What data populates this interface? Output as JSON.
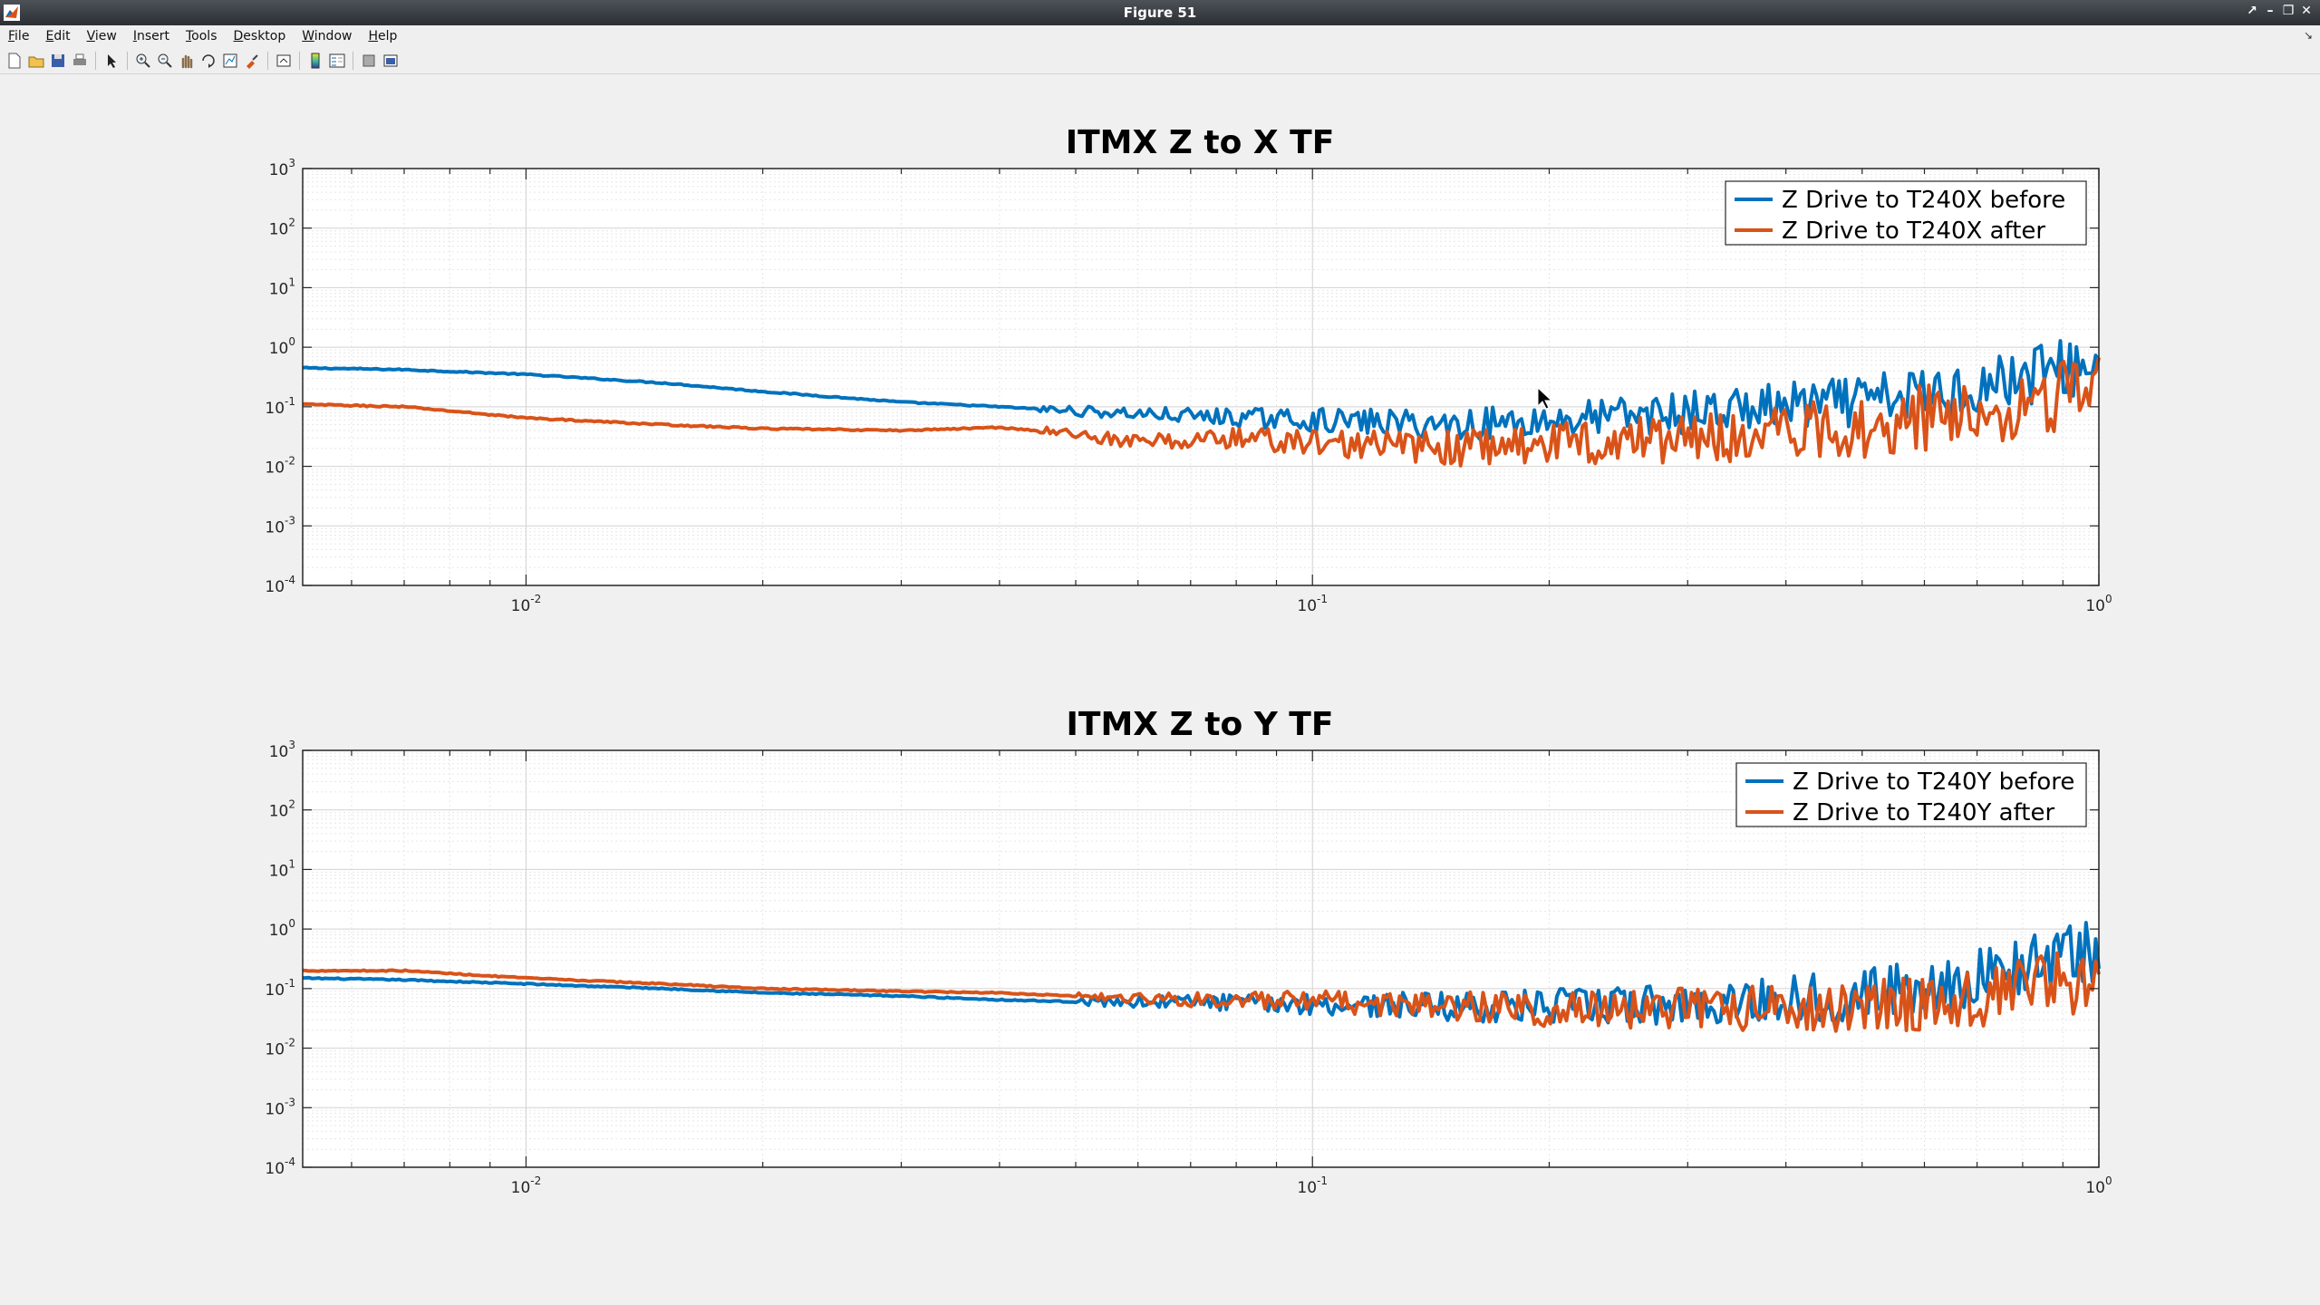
{
  "window": {
    "title": "Figure 51"
  },
  "menu": [
    "File",
    "Edit",
    "View",
    "Insert",
    "Tools",
    "Desktop",
    "Window",
    "Help"
  ],
  "toolbar": [
    "new-file-icon",
    "open-file-icon",
    "save-icon",
    "print-icon",
    "sep",
    "pointer-icon",
    "sep",
    "zoom-in-icon",
    "zoom-out-icon",
    "pan-icon",
    "rotate-icon",
    "data-cursor-icon",
    "brush-icon",
    "sep",
    "link-icon",
    "sep",
    "colorbar-icon",
    "legend-icon",
    "sep",
    "hide-tools-icon",
    "dock-icon"
  ],
  "colors": {
    "series1": "#0072bd",
    "series2": "#d95319"
  },
  "chart_data": [
    {
      "type": "line",
      "title": "ITMX Z to X TF",
      "xscale": "log",
      "yscale": "log",
      "xlim": [
        0.0052,
        1
      ],
      "ylim": [
        0.0001,
        1000
      ],
      "xticks": [
        {
          "v": 0.01,
          "e": "-2"
        },
        {
          "v": 0.1,
          "e": "-1"
        },
        {
          "v": 1,
          "e": "0"
        }
      ],
      "yticks": [
        {
          "v": 0.0001,
          "e": "-4"
        },
        {
          "v": 0.001,
          "e": "-3"
        },
        {
          "v": 0.01,
          "e": "-2"
        },
        {
          "v": 0.1,
          "e": "-1"
        },
        {
          "v": 1,
          "e": "0"
        },
        {
          "v": 10,
          "e": "1"
        },
        {
          "v": 100,
          "e": "2"
        },
        {
          "v": 1000,
          "e": "3"
        }
      ],
      "tick_base": "10",
      "grid": true,
      "legend_position": "top-right",
      "series": [
        {
          "name": "Z Drive to T240X before",
          "anchors": [
            [
              0.0052,
              0.45
            ],
            [
              0.007,
              0.42
            ],
            [
              0.01,
              0.35
            ],
            [
              0.015,
              0.25
            ],
            [
              0.02,
              0.18
            ],
            [
              0.03,
              0.12
            ],
            [
              0.04,
              0.1
            ],
            [
              0.05,
              0.085
            ],
            [
              0.07,
              0.07
            ],
            [
              0.1,
              0.06
            ],
            [
              0.15,
              0.05
            ],
            [
              0.2,
              0.06
            ],
            [
              0.3,
              0.08
            ],
            [
              0.5,
              0.12
            ],
            [
              0.7,
              0.22
            ],
            [
              0.85,
              0.4
            ],
            [
              1,
              0.5
            ]
          ],
          "noise": 0.55,
          "noise_start": 0.045
        },
        {
          "name": "Z Drive to T240X after",
          "anchors": [
            [
              0.0052,
              0.11
            ],
            [
              0.007,
              0.1
            ],
            [
              0.01,
              0.065
            ],
            [
              0.015,
              0.05
            ],
            [
              0.02,
              0.043
            ],
            [
              0.03,
              0.04
            ],
            [
              0.04,
              0.045
            ],
            [
              0.05,
              0.035
            ],
            [
              0.06,
              0.025
            ],
            [
              0.08,
              0.03
            ],
            [
              0.1,
              0.025
            ],
            [
              0.15,
              0.02
            ],
            [
              0.2,
              0.025
            ],
            [
              0.3,
              0.03
            ],
            [
              0.5,
              0.045
            ],
            [
              0.7,
              0.09
            ],
            [
              0.85,
              0.14
            ],
            [
              1,
              0.22
            ]
          ],
          "noise": 0.65,
          "noise_start": 0.045
        }
      ]
    },
    {
      "type": "line",
      "title": "ITMX Z to Y TF",
      "xscale": "log",
      "yscale": "log",
      "xlim": [
        0.0052,
        1
      ],
      "ylim": [
        0.0001,
        1000
      ],
      "xticks": [
        {
          "v": 0.01,
          "e": "-2"
        },
        {
          "v": 0.1,
          "e": "-1"
        },
        {
          "v": 1,
          "e": "0"
        }
      ],
      "yticks": [
        {
          "v": 0.0001,
          "e": "-4"
        },
        {
          "v": 0.001,
          "e": "-3"
        },
        {
          "v": 0.01,
          "e": "-2"
        },
        {
          "v": 0.1,
          "e": "-1"
        },
        {
          "v": 1,
          "e": "0"
        },
        {
          "v": 10,
          "e": "1"
        },
        {
          "v": 100,
          "e": "2"
        },
        {
          "v": 1000,
          "e": "3"
        }
      ],
      "tick_base": "10",
      "grid": true,
      "legend_position": "top-right",
      "series": [
        {
          "name": "Z Drive to T240Y before",
          "anchors": [
            [
              0.0052,
              0.15
            ],
            [
              0.007,
              0.14
            ],
            [
              0.01,
              0.12
            ],
            [
              0.015,
              0.1
            ],
            [
              0.02,
              0.085
            ],
            [
              0.03,
              0.075
            ],
            [
              0.04,
              0.065
            ],
            [
              0.05,
              0.06
            ],
            [
              0.07,
              0.06
            ],
            [
              0.1,
              0.055
            ],
            [
              0.15,
              0.05
            ],
            [
              0.2,
              0.05
            ],
            [
              0.3,
              0.055
            ],
            [
              0.5,
              0.08
            ],
            [
              0.7,
              0.15
            ],
            [
              0.85,
              0.3
            ],
            [
              1,
              0.4
            ]
          ],
          "noise": 0.55,
          "noise_start": 0.05
        },
        {
          "name": "Z Drive to T240Y after",
          "anchors": [
            [
              0.0052,
              0.2
            ],
            [
              0.007,
              0.2
            ],
            [
              0.01,
              0.15
            ],
            [
              0.015,
              0.12
            ],
            [
              0.02,
              0.1
            ],
            [
              0.03,
              0.09
            ],
            [
              0.04,
              0.085
            ],
            [
              0.05,
              0.075
            ],
            [
              0.07,
              0.065
            ],
            [
              0.1,
              0.06
            ],
            [
              0.15,
              0.05
            ],
            [
              0.2,
              0.045
            ],
            [
              0.3,
              0.045
            ],
            [
              0.5,
              0.05
            ],
            [
              0.7,
              0.07
            ],
            [
              0.85,
              0.11
            ],
            [
              1,
              0.15
            ]
          ],
          "noise": 0.55,
          "noise_start": 0.05
        }
      ]
    }
  ]
}
